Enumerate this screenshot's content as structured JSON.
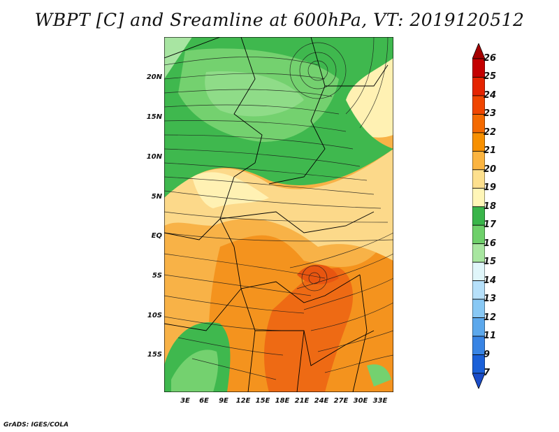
{
  "title": "WBPT [C] and Sreamline at 600hPa, VT: 2019120512",
  "credit": "GrADS: IGES/COLA",
  "axes": {
    "lat_labels": [
      "20N",
      "15N",
      "10N",
      "5N",
      "EQ",
      "5S",
      "10S",
      "15S"
    ],
    "lon_labels": [
      "3E",
      "6E",
      "9E",
      "12E",
      "15E",
      "18E",
      "21E",
      "24E",
      "27E",
      "30E",
      "33E"
    ]
  },
  "colorbar": {
    "labels": [
      "26",
      "25",
      "24",
      "23",
      "22",
      "21",
      "20",
      "19",
      "18",
      "17",
      "16",
      "15",
      "14",
      "13",
      "12",
      "11",
      "9",
      "7"
    ],
    "colors": [
      "#a50000",
      "#c40000",
      "#e52400",
      "#f04600",
      "#f46a00",
      "#f79000",
      "#fbb440",
      "#fde08e",
      "#fff6b8",
      "#39b54a",
      "#6ed06a",
      "#a8e6a0",
      "#e0f6fa",
      "#b6e0fa",
      "#88c8f4",
      "#5ca8ec",
      "#3884e4",
      "#1a60d8",
      "#1a4cc8"
    ]
  },
  "field_colors": {
    "c18": "#3fb84e",
    "c17": "#74d16f",
    "c16": "#a8e5a2",
    "c19": "#fff1b3",
    "c20": "#fcd98a",
    "c21": "#f8b247",
    "c22": "#f4931e",
    "c23": "#ee6a14"
  }
}
